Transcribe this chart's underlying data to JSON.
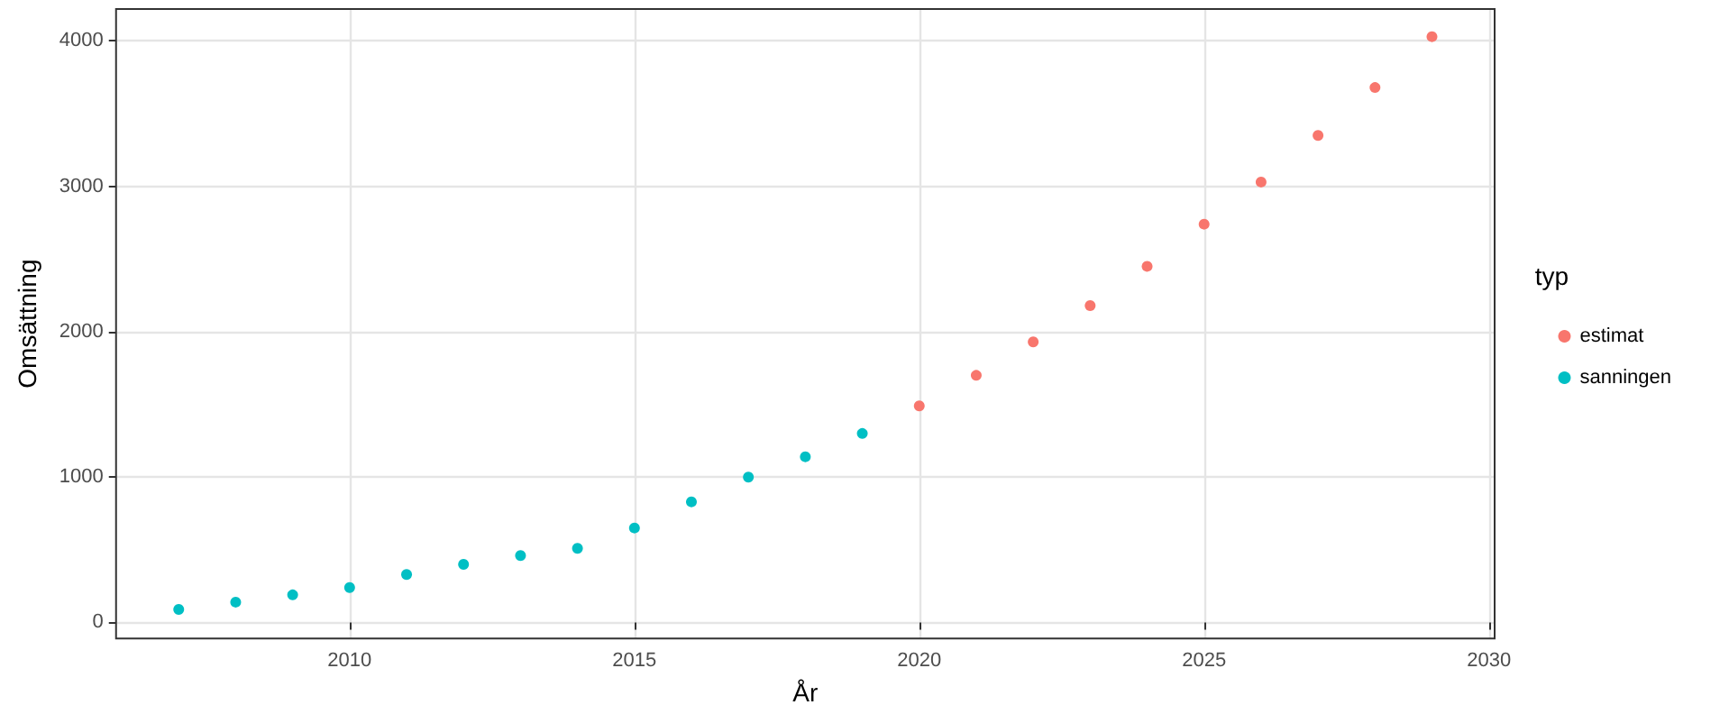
{
  "chart_data": {
    "type": "scatter",
    "xlabel": "År",
    "ylabel": "Omsättning",
    "legend_title": "typ",
    "legend": "right",
    "grid": true,
    "marker": "circle",
    "xlim": [
      2005.9,
      2030.1
    ],
    "xticks": [
      2010,
      2015,
      2020,
      2025,
      2030
    ],
    "ylim": [
      -110,
      4220
    ],
    "yticks": [
      0,
      1000,
      2000,
      3000,
      4000
    ],
    "series": [
      {
        "name": "estimat",
        "color": "#f8766d",
        "x": [
          2020,
          2021,
          2022,
          2023,
          2024,
          2025,
          2026,
          2027,
          2028,
          2029
        ],
        "values": [
          1490,
          1700,
          1930,
          2180,
          2450,
          2740,
          3030,
          3350,
          3680,
          4030
        ]
      },
      {
        "name": "sanningen",
        "color": "#00bfc4",
        "x": [
          2007,
          2008,
          2009,
          2010,
          2011,
          2012,
          2013,
          2014,
          2015,
          2016,
          2017,
          2018,
          2019
        ],
        "values": [
          90,
          140,
          190,
          240,
          330,
          400,
          460,
          510,
          650,
          830,
          1000,
          1140,
          1300
        ]
      }
    ]
  }
}
